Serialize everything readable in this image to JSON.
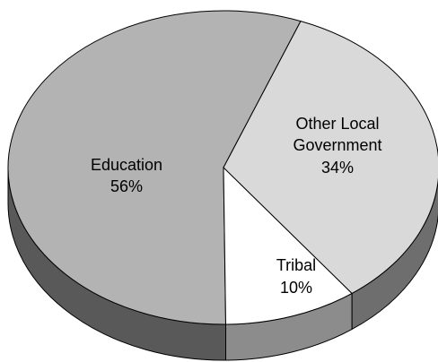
{
  "chart_data": {
    "type": "pie",
    "style": "3d",
    "slices": [
      {
        "name": "Education",
        "value": 56,
        "value_label": "56%",
        "color": "#b3b3b3",
        "side_color": "#595959"
      },
      {
        "name": "Other Local Government",
        "name_lines": [
          "Other Local",
          "Government"
        ],
        "value": 34,
        "value_label": "34%",
        "color": "#d9d9d9",
        "side_color": "#6e6e6e"
      },
      {
        "name": "Tribal",
        "value": 10,
        "value_label": "10%",
        "color": "#ffffff",
        "side_color": "#8c8c8c"
      }
    ]
  }
}
